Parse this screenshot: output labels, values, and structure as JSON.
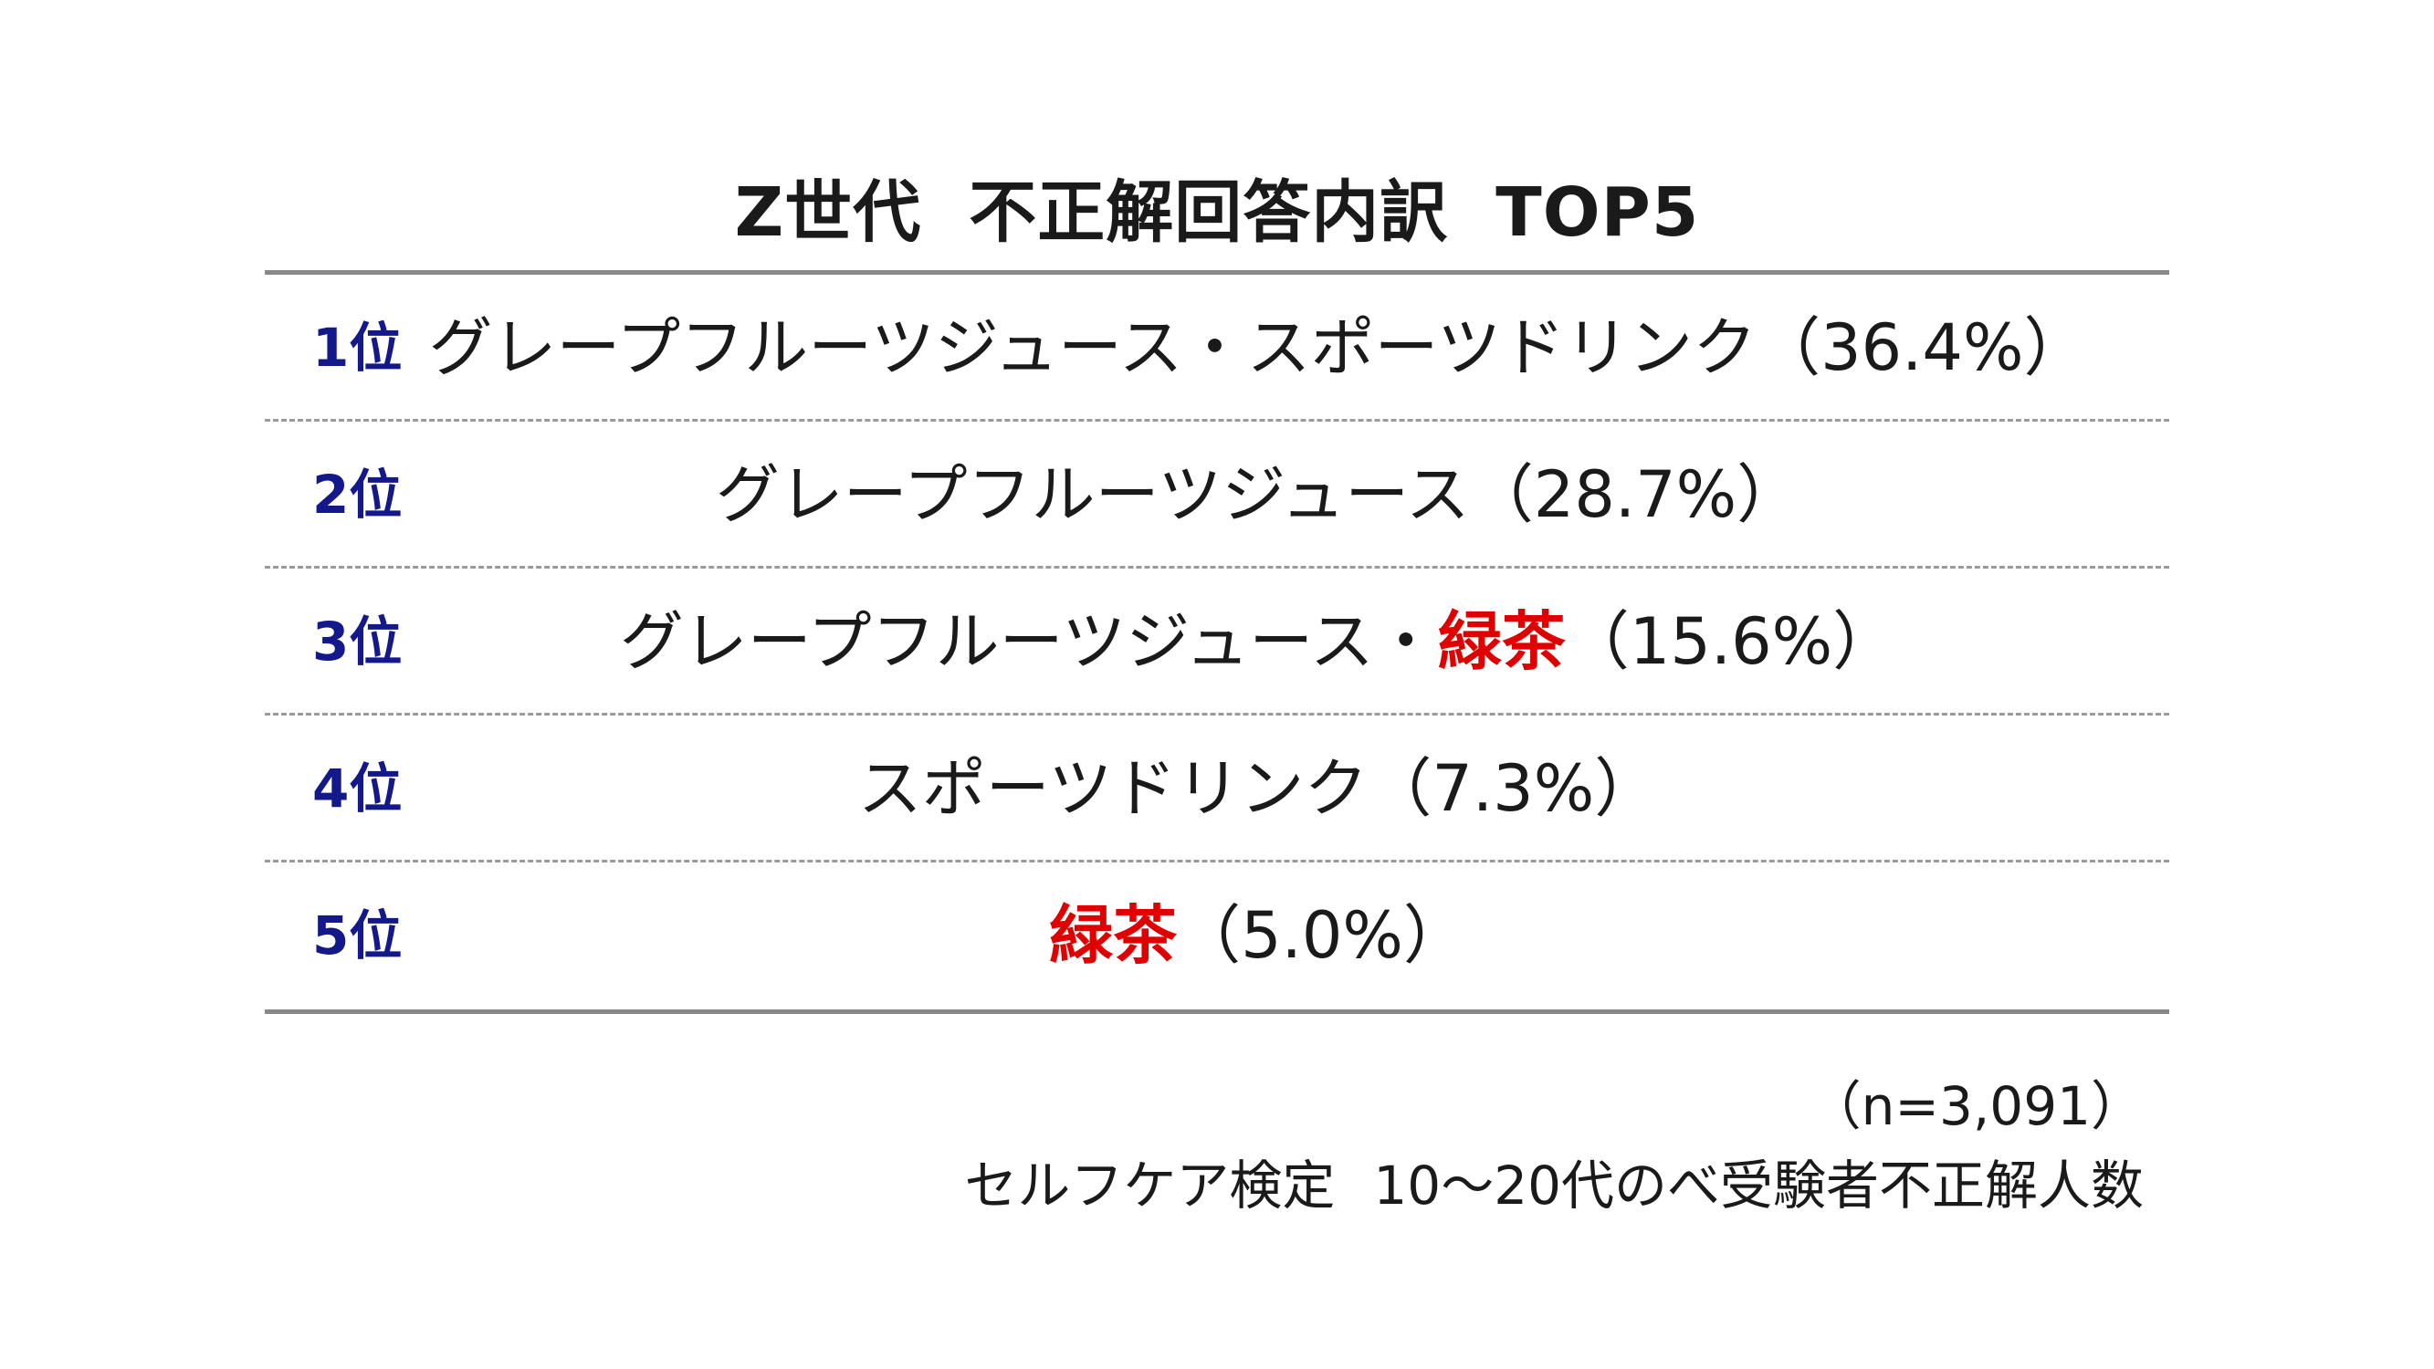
{
  "title": {
    "part1": "Z世代",
    "part2": "不正解回答内訳",
    "part3": "TOP5"
  },
  "ranking": [
    {
      "rank": "1位",
      "prefix": "グレープフルーツジュース・スポーツドリンク",
      "accent": "",
      "value": "（36.4%）"
    },
    {
      "rank": "2位",
      "prefix": "グレープフルーツジュース",
      "accent": "",
      "value": "（28.7%）"
    },
    {
      "rank": "3位",
      "prefix": "グレープフルーツジュース・",
      "accent": "緑茶",
      "value": "（15.6%）"
    },
    {
      "rank": "4位",
      "prefix": "スポーツドリンク",
      "accent": "",
      "value": "（7.3%）"
    },
    {
      "rank": "5位",
      "prefix": "",
      "accent": "緑茶",
      "value": "（5.0%）"
    }
  ],
  "footnote": {
    "sample": "（n=3,091）",
    "source_part1": "セルフケア検定",
    "source_part2": "10～20代のべ受験者不正解人数"
  },
  "colors": {
    "rank": "#13188a",
    "accent": "#e00000",
    "rule": "#888888"
  }
}
